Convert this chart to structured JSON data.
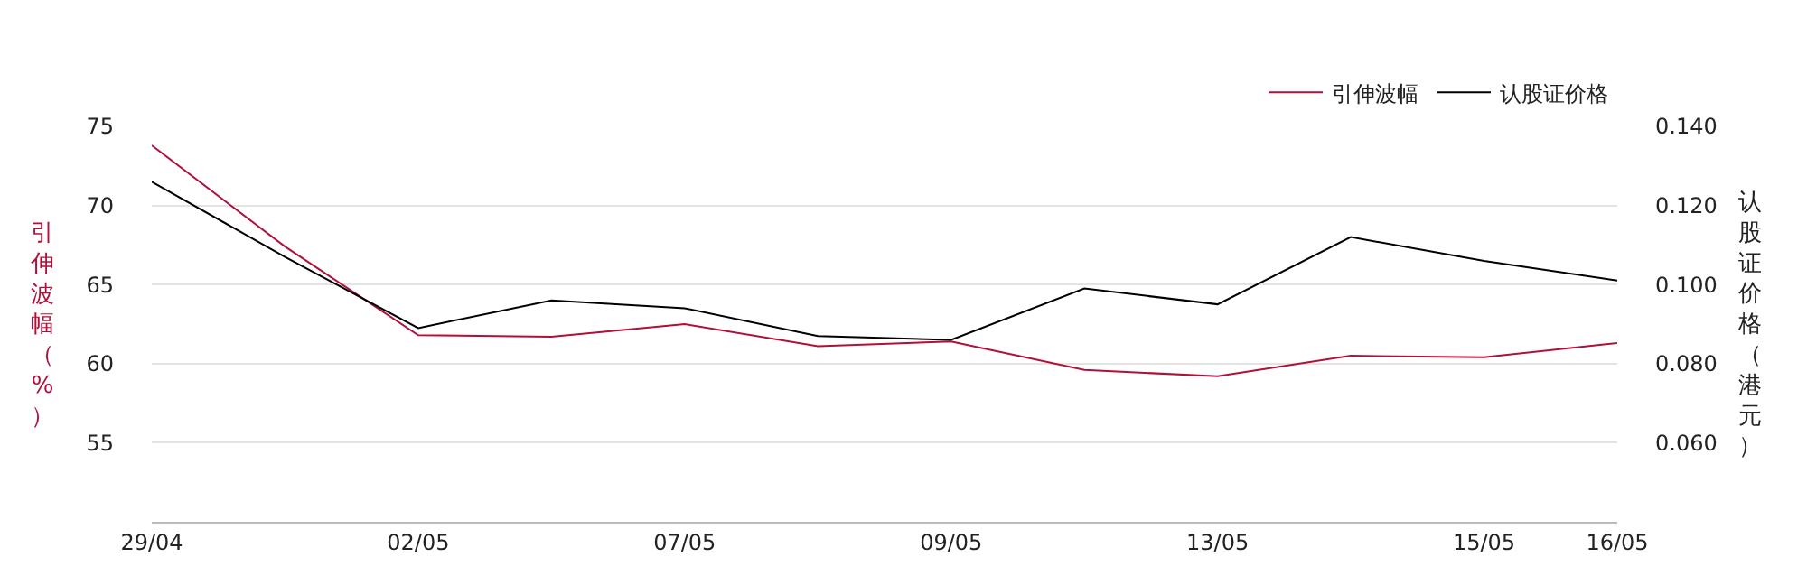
{
  "chart_data": {
    "type": "line",
    "categories": [
      "29/04",
      null,
      "02/05",
      null,
      "07/05",
      null,
      "09/05",
      null,
      "13/05",
      null,
      "15/05",
      "16/05"
    ],
    "series": [
      {
        "name": "引伸波幅",
        "color": "#b0103a",
        "values": [
          73.8,
          67.4,
          61.8,
          61.7,
          62.5,
          61.1,
          61.4,
          59.6,
          59.2,
          60.5,
          60.4,
          61.3
        ]
      },
      {
        "name": "认股证价格",
        "color": "#000000",
        "axis": "y2",
        "values": [
          0.126,
          0.107,
          0.089,
          0.096,
          0.094,
          0.087,
          0.086,
          0.099,
          0.095,
          0.112,
          0.106,
          0.101
        ]
      }
    ],
    "ylabel": "引伸波幅（%）",
    "y2label": "认股证价格（港元）",
    "ylim": [
      50,
      75
    ],
    "yticks": [
      55,
      60,
      65,
      70,
      75
    ],
    "y2lim": [
      0.04,
      0.14
    ],
    "y2ticks": [
      {
        "value": 0.06,
        "label": "0.060"
      },
      {
        "value": 0.08,
        "label": "0.080"
      },
      {
        "value": 0.1,
        "label": "0.100"
      },
      {
        "value": 0.12,
        "label": "0.120"
      },
      {
        "value": 0.14,
        "label": "0.140"
      }
    ],
    "grid": "y",
    "legend": "top right",
    "marker": "none",
    "line_style": "solid"
  }
}
